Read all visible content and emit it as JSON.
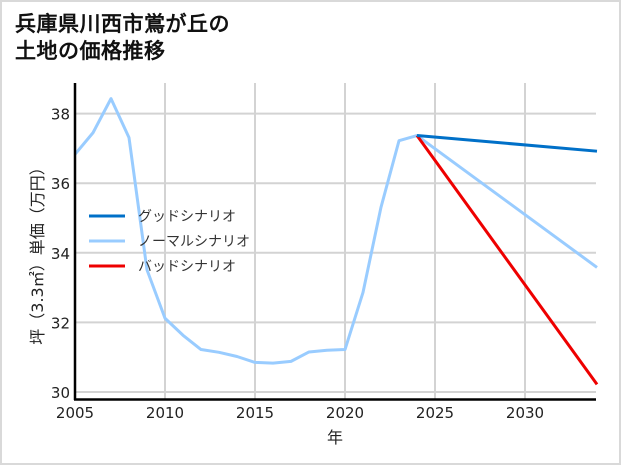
{
  "title": "兵庫県川西市鴬が丘の\n土地の価格推移",
  "colors": {
    "good": "#0070c8",
    "normal": "#99ccff",
    "bad": "#ee0000",
    "grid": "#d3d3d3",
    "spine": "#000000"
  },
  "chart_data": {
    "type": "line",
    "title": "兵庫県川西市鴬が丘の土地の価格推移",
    "xlabel": "年",
    "ylabel": "坪（3.3㎡）単価（万円）",
    "xlim": [
      2005,
      2034
    ],
    "ylim": [
      29.8,
      38.8
    ],
    "xticks": [
      2005,
      2010,
      2015,
      2020,
      2025,
      2030
    ],
    "yticks": [
      30,
      32,
      34,
      36,
      38
    ],
    "grid": true,
    "legend_position": "center-left",
    "series": [
      {
        "name": "グッドシナリオ",
        "color": "#0070c8",
        "x": [
          2024,
          2034
        ],
        "values": [
          37.37,
          36.92
        ]
      },
      {
        "name": "ノーマルシナリオ",
        "color": "#99ccff",
        "x": [
          2005,
          2006,
          2007,
          2008,
          2009,
          2010,
          2011,
          2012,
          2013,
          2014,
          2015,
          2016,
          2017,
          2018,
          2019,
          2020,
          2021,
          2022,
          2023,
          2024,
          2034
        ],
        "values": [
          36.83,
          37.45,
          38.43,
          37.31,
          33.51,
          32.12,
          31.63,
          31.22,
          31.14,
          31.02,
          30.85,
          30.83,
          30.88,
          31.15,
          31.2,
          31.22,
          32.86,
          35.31,
          37.22,
          37.37,
          33.58
        ]
      },
      {
        "name": "バッドシナリオ",
        "color": "#ee0000",
        "x": [
          2024,
          2034
        ],
        "values": [
          37.37,
          30.22
        ]
      }
    ]
  }
}
